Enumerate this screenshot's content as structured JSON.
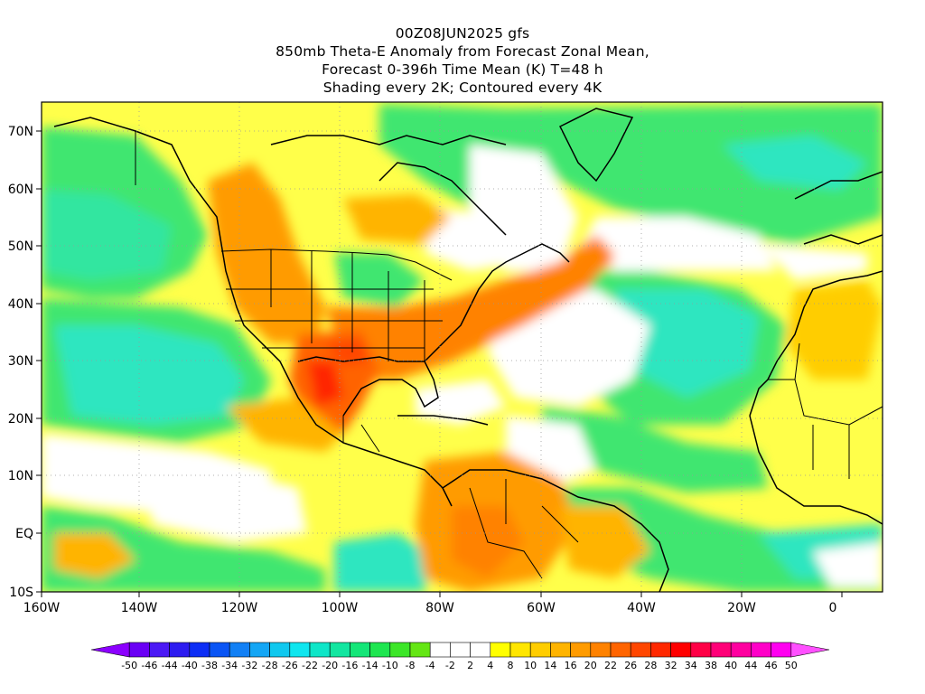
{
  "title": {
    "line1": "00Z08JUN2025 gfs",
    "line2": "850mb Theta-E Anomaly from Forecast Zonal Mean,",
    "line3": "Forecast 0-396h Time Mean (K) T=48 h",
    "line4": "Shading every 2K; Contoured every 4K"
  },
  "axes": {
    "lat_labels": [
      "70N",
      "60N",
      "50N",
      "40N",
      "30N",
      "20N",
      "10N",
      "EQ",
      "10S"
    ],
    "lon_labels": [
      "160W",
      "140W",
      "120W",
      "100W",
      "80W",
      "60W",
      "40W",
      "20W",
      "0"
    ]
  },
  "colorbar": {
    "labels": [
      "-50",
      "-46",
      "-44",
      "-40",
      "-38",
      "-34",
      "-32",
      "-28",
      "-26",
      "-22",
      "-20",
      "-16",
      "-14",
      "-10",
      "-8",
      "-4",
      "-2",
      "2",
      "4",
      "8",
      "10",
      "14",
      "16",
      "20",
      "22",
      "26",
      "28",
      "32",
      "34",
      "38",
      "40",
      "44",
      "46",
      "50"
    ],
    "colors": [
      "#8c00ff",
      "#6a00f5",
      "#4b19f5",
      "#2d1cf0",
      "#0d2ef5",
      "#0a55f5",
      "#1280f5",
      "#14a6f5",
      "#10c8ef",
      "#0fe6ef",
      "#0fe6c8",
      "#12e6a0",
      "#14e678",
      "#1ee650",
      "#3ce628",
      "#64e614",
      "#ffffff",
      "#ffffff",
      "#ffffff",
      "#ffff00",
      "#ffe600",
      "#ffcd00",
      "#ffb400",
      "#ff9b00",
      "#ff8200",
      "#ff6400",
      "#ff4600",
      "#ff2800",
      "#ff0000",
      "#ff0046",
      "#ff0078",
      "#ff00a0",
      "#ff00c8",
      "#ff00f0",
      "#ff50ff"
    ]
  }
}
